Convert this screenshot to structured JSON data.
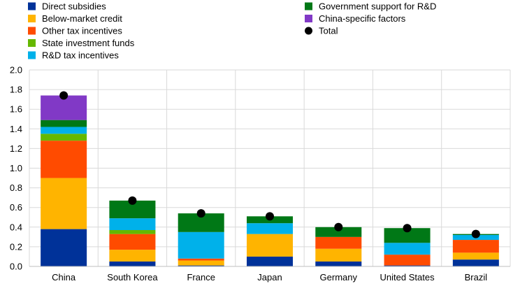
{
  "chart_data": {
    "type": "bar",
    "stacked": true,
    "categories": [
      "China",
      "South Korea",
      "France",
      "Japan",
      "Germany",
      "United States",
      "Brazil"
    ],
    "ylim": [
      0,
      2.0
    ],
    "yticks": [
      "0.0",
      "0.2",
      "0.4",
      "0.6",
      "0.8",
      "1.0",
      "1.2",
      "1.4",
      "1.6",
      "1.8",
      "2.0"
    ],
    "grid": true,
    "legend_position": "top",
    "series": [
      {
        "name": "Direct subsidies",
        "color": "#003299",
        "values": [
          0.38,
          0.05,
          0.01,
          0.1,
          0.05,
          0.01,
          0.07
        ]
      },
      {
        "name": "Below-market credit",
        "color": "#FFB400",
        "values": [
          0.52,
          0.12,
          0.05,
          0.23,
          0.13,
          0.0,
          0.07
        ]
      },
      {
        "name": "Other tax incentives",
        "color": "#FF4B00",
        "values": [
          0.38,
          0.16,
          0.02,
          0.0,
          0.12,
          0.11,
          0.13
        ]
      },
      {
        "name": "State investment funds",
        "color": "#65B800",
        "values": [
          0.07,
          0.04,
          0.0,
          0.0,
          0.0,
          0.0,
          0.0
        ]
      },
      {
        "name": "R&D tax incentives",
        "color": "#00B1EA",
        "values": [
          0.07,
          0.12,
          0.27,
          0.11,
          0.0,
          0.12,
          0.05
        ]
      },
      {
        "name": "Government support for R&D",
        "color": "#007816",
        "values": [
          0.07,
          0.18,
          0.19,
          0.07,
          0.1,
          0.15,
          0.01
        ]
      },
      {
        "name": "China-specific factors",
        "color": "#8139C6",
        "values": [
          0.25,
          0.0,
          0.0,
          0.0,
          0.0,
          0.0,
          0.0
        ]
      }
    ],
    "total": {
      "name": "Total",
      "color": "#000000",
      "values": [
        1.74,
        0.67,
        0.54,
        0.51,
        0.4,
        0.39,
        0.33
      ]
    }
  }
}
